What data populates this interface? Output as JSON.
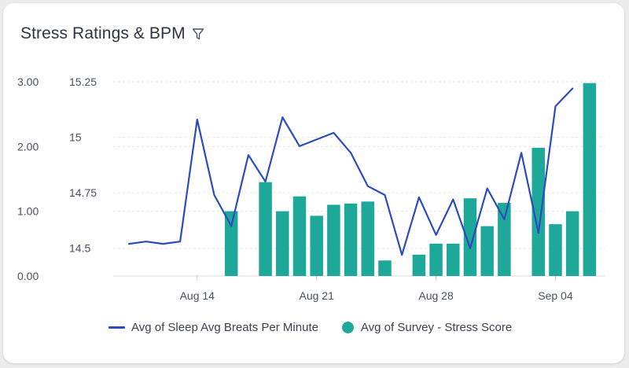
{
  "card": {
    "title": "Stress Ratings & BPM"
  },
  "icons": {
    "filter": "filter-icon"
  },
  "colors": {
    "line": "#2b4bbf",
    "bar": "#1da89a",
    "grid": "#e4e6ea",
    "text": "#4a4f5c"
  },
  "chart_data": {
    "type": "bar+line",
    "title": "Stress Ratings & BPM",
    "x_ticks": [
      {
        "label": "Aug 14",
        "day": 14
      },
      {
        "label": "Aug 21",
        "day": 21
      },
      {
        "label": "Aug 28",
        "day": 28
      },
      {
        "label": "Sep 04",
        "day": 35
      }
    ],
    "x_range": [
      10,
      36.5
    ],
    "left_axis": {
      "ticks": [
        "0.00",
        "1.00",
        "2.00",
        "3.00"
      ],
      "values": [
        0,
        1,
        2,
        3
      ],
      "range": [
        0,
        3
      ]
    },
    "right_axis": {
      "ticks": [
        "14.5",
        "14.75",
        "15",
        "15.25"
      ],
      "values": [
        14.5,
        14.75,
        15,
        15.25
      ],
      "range": [
        14.375,
        15.25
      ]
    },
    "series": [
      {
        "name": "Avg of Survey - Stress Score",
        "type": "bar",
        "axis": "left",
        "points": [
          {
            "day": 16,
            "value": 1.0
          },
          {
            "day": 18,
            "value": 1.45
          },
          {
            "day": 19,
            "value": 1.0
          },
          {
            "day": 20,
            "value": 1.23
          },
          {
            "day": 21,
            "value": 0.93
          },
          {
            "day": 22,
            "value": 1.1
          },
          {
            "day": 23,
            "value": 1.12
          },
          {
            "day": 24,
            "value": 1.15
          },
          {
            "day": 25,
            "value": 0.24
          },
          {
            "day": 27,
            "value": 0.33
          },
          {
            "day": 28,
            "value": 0.5
          },
          {
            "day": 29,
            "value": 0.5
          },
          {
            "day": 30,
            "value": 1.2
          },
          {
            "day": 31,
            "value": 0.77
          },
          {
            "day": 32,
            "value": 1.13
          },
          {
            "day": 34,
            "value": 1.98
          },
          {
            "day": 35,
            "value": 0.8
          },
          {
            "day": 36,
            "value": 1.0
          },
          {
            "day": 37,
            "value": 2.98
          }
        ]
      },
      {
        "name": "Avg of Sleep Avg Breats Per Minute",
        "type": "line",
        "axis": "right",
        "points": [
          {
            "day": 10,
            "value": 14.52
          },
          {
            "day": 11,
            "value": 14.53
          },
          {
            "day": 12,
            "value": 14.52
          },
          {
            "day": 13,
            "value": 14.53
          },
          {
            "day": 14,
            "value": 15.08
          },
          {
            "day": 15,
            "value": 14.74
          },
          {
            "day": 16,
            "value": 14.6
          },
          {
            "day": 17,
            "value": 14.92
          },
          {
            "day": 18,
            "value": 14.8
          },
          {
            "day": 19,
            "value": 15.09
          },
          {
            "day": 20,
            "value": 14.96
          },
          {
            "day": 21,
            "value": 14.99
          },
          {
            "day": 22,
            "value": 15.02
          },
          {
            "day": 23,
            "value": 14.93
          },
          {
            "day": 24,
            "value": 14.78
          },
          {
            "day": 25,
            "value": 14.74
          },
          {
            "day": 26,
            "value": 14.47
          },
          {
            "day": 27,
            "value": 14.73
          },
          {
            "day": 28,
            "value": 14.56
          },
          {
            "day": 29,
            "value": 14.72
          },
          {
            "day": 30,
            "value": 14.5
          },
          {
            "day": 31,
            "value": 14.77
          },
          {
            "day": 32,
            "value": 14.63
          },
          {
            "day": 33,
            "value": 14.93
          },
          {
            "day": 34,
            "value": 14.57
          },
          {
            "day": 35,
            "value": 15.14
          },
          {
            "day": 36,
            "value": 15.22
          }
        ]
      }
    ],
    "legend": [
      {
        "label": "Avg of Sleep Avg Breats Per Minute",
        "marker": "line"
      },
      {
        "label": "Avg of Survey - Stress Score",
        "marker": "dot"
      }
    ],
    "legend_position": "bottom"
  }
}
